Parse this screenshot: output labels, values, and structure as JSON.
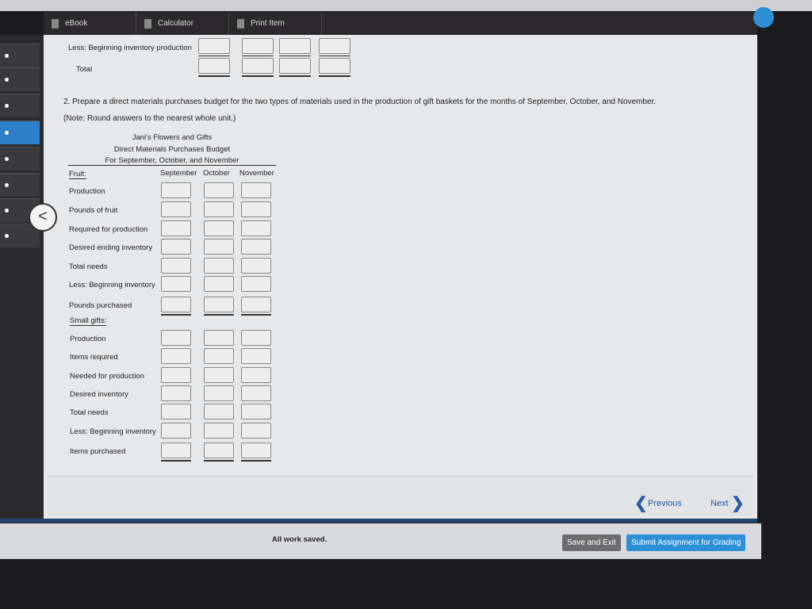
{
  "toolbar": {
    "items": [
      {
        "label": "eBook",
        "icon": "book-icon"
      },
      {
        "label": "Calculator",
        "icon": "calculator-icon"
      },
      {
        "label": "Print Item",
        "icon": "print-icon"
      }
    ]
  },
  "top_rows": [
    {
      "label": "Less: Beginning inventory production"
    },
    {
      "label": "Total"
    }
  ],
  "question": {
    "text": "2. Prepare a direct materials purchases budget for the two types of materials used in the production of gift baskets for the months of September, October, and November.",
    "note": "(Note: Round answers to the nearest whole unit.)"
  },
  "budget": {
    "company": "Jani's Flowers and Gifts",
    "title": "Direct Materials Purchases Budget",
    "period": "For September, October, and November",
    "columns": [
      "September",
      "October",
      "November"
    ],
    "fruit": {
      "heading": "Fruit:",
      "rows": [
        "Production",
        "Pounds of fruit",
        "Required for production",
        "Desired ending inventory",
        "Total needs",
        "Less: Beginning inventory",
        "Pounds purchased"
      ]
    },
    "gifts": {
      "heading": "Small gifts:",
      "rows": [
        "Production",
        "Items required",
        "Needed for production",
        "Desired inventory",
        "Total needs",
        "Less: Beginning inventory",
        "Items purchased"
      ]
    }
  },
  "nav": {
    "previous": "Previous",
    "next": "Next",
    "back_glyph": "<"
  },
  "footer": {
    "status": "All work saved.",
    "save_exit": "Save and Exit",
    "submit": "Submit Assignment for Grading"
  },
  "colors": {
    "accent": "#2c7fc8",
    "submit": "#2d8fd6",
    "save": "#6c6c6e"
  }
}
